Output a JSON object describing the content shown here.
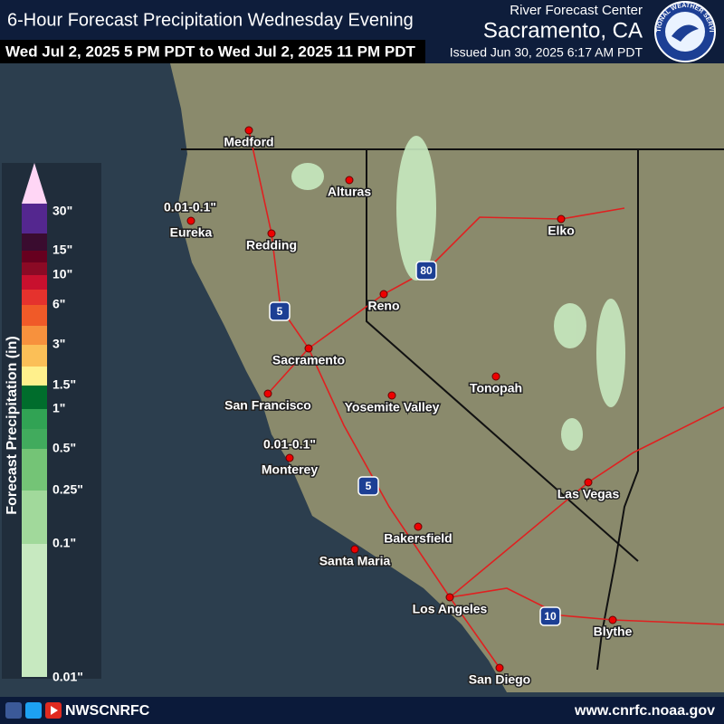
{
  "header": {
    "title": "6-Hour Forecast Precipitation Wednesday Evening",
    "subtitle": "Wed Jul 2, 2025 5 PM PDT to Wed Jul 2, 2025 11 PM PDT",
    "office_line": "River Forecast Center",
    "office": "Sacramento, CA",
    "issued": "Issued Jun 30, 2025 6:17 AM PDT"
  },
  "logo": {
    "text": "NATIONAL WEATHER SERVICE"
  },
  "legend": {
    "title": "Forecast Precipitation (in)",
    "colors": [
      "#ffd6f5",
      "#54278f",
      "#3a0c2f",
      "#67001f",
      "#8b0a25",
      "#c8102e",
      "#e5322d",
      "#f05a28",
      "#f7913d",
      "#fbbf57",
      "#fff08c",
      "#006d2c",
      "#31a354",
      "#41ab5d",
      "#74c476",
      "#a1d99b",
      "#c7e9c0"
    ],
    "labels": [
      "30\"",
      "15\"",
      "10\"",
      "6\"",
      "3\"",
      "1.5\"",
      "1\"",
      "0.5\"",
      "0.25\"",
      "0.1\"",
      "0.01\""
    ]
  },
  "map": {
    "cities": [
      "Medford",
      "Alturas",
      "Eureka",
      "Redding",
      "Elko",
      "Reno",
      "Sacramento",
      "San Francisco",
      "Yosemite Valley",
      "Tonopah",
      "Monterey",
      "Las Vegas",
      "Bakersfield",
      "Santa Maria",
      "Los Angeles",
      "Blythe",
      "San Diego"
    ],
    "annotations": [
      "0.01-0.1\"",
      "0.01-0.1\""
    ],
    "highways": [
      "5",
      "80",
      "5",
      "10"
    ]
  },
  "footer": {
    "handle": "NWSCNRFC",
    "url": "www.cnrfc.noaa.gov"
  }
}
